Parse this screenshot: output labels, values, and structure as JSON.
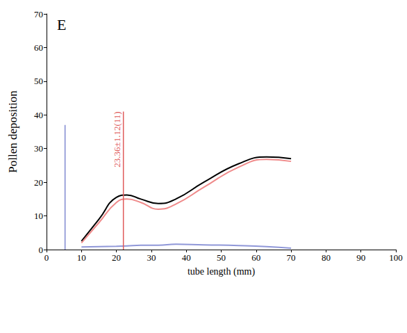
{
  "chart_data": {
    "type": "line",
    "panel_label": "E",
    "x_label": "tube length (mm)",
    "y_label": "Pollen deposition",
    "xlim": [
      0,
      100
    ],
    "xticks": [
      0,
      10,
      20,
      30,
      40,
      50,
      60,
      70,
      80,
      90,
      100
    ],
    "ylim": [
      0,
      70
    ],
    "yticks": [
      0,
      10,
      20,
      30,
      40,
      50,
      60,
      70
    ],
    "grid": false,
    "x": [
      10,
      15,
      20,
      23,
      27,
      32,
      37,
      45,
      55,
      63,
      70
    ],
    "series": [
      {
        "color": "#000000",
        "values": [
          2.5,
          9,
          15.5,
          16.2,
          15,
          13.7,
          15,
          20,
          25.5,
          27.5,
          27
        ]
      },
      {
        "color": "#ef8a8a",
        "values": [
          2,
          8,
          14,
          15,
          14,
          12,
          13.5,
          18.5,
          24.5,
          26.8,
          26.2
        ]
      },
      {
        "color": "#8f97d8",
        "values": [
          0.8,
          0.9,
          1,
          1.1,
          1.3,
          1.3,
          1.6,
          1.4,
          1.2,
          0.9,
          0.4
        ]
      }
    ],
    "reference_lines": [
      {
        "x": 5.3,
        "y_end": 37,
        "color": "#7f88d0"
      },
      {
        "x": 22,
        "y_end": 41,
        "color": "#e05a5a",
        "label": "23.36±1.12(11)"
      }
    ]
  }
}
